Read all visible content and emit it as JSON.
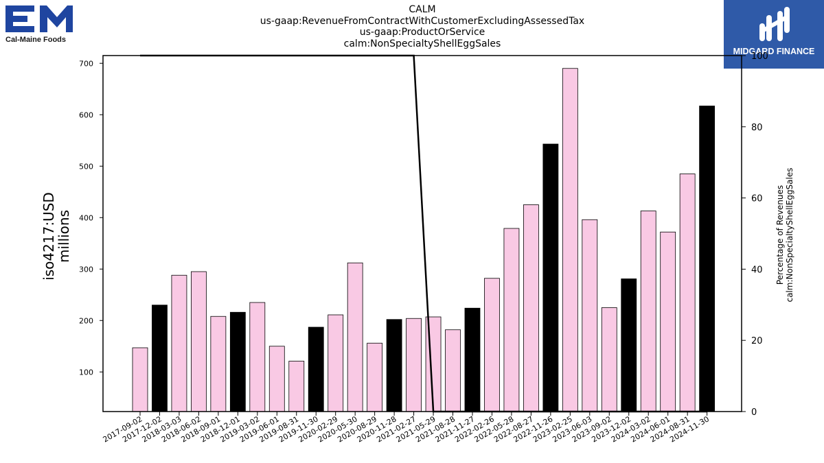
{
  "logos": {
    "left_text": "Cal-Maine Foods",
    "right_text": "MIDGARD FINANCE",
    "brand_blue": "#1f45a0",
    "finance_bg": "#2f5aa8"
  },
  "chart_data": {
    "type": "bar",
    "title_lines": [
      "CALM",
      "us-gaap:RevenueFromContractWithCustomerExcludingAssessedTax",
      "us-gaap:ProductOrService",
      "calm:NonSpecialtyShellEggSales"
    ],
    "ylabel": "iso4217:USD\nmillions",
    "y2label": "Percentage of Revenues\ncalm:NonSpecialtyShellEggSales",
    "ylim": [
      23,
      715
    ],
    "y2lim": [
      0,
      100
    ],
    "yticks": [
      100,
      200,
      300,
      400,
      500,
      600,
      700
    ],
    "y2ticks": [
      0,
      20,
      40,
      60,
      80,
      100
    ],
    "colors": {
      "quarter": "#f9c9e4",
      "annual": "#000000",
      "line": "#000000"
    },
    "categories": [
      "2017-09-02",
      "2017-12-02",
      "2018-03-03",
      "2018-06-02",
      "2018-09-01",
      "2018-12-01",
      "2019-03-02",
      "2019-06-01",
      "2019-08-31",
      "2019-11-30",
      "2020-02-29",
      "2020-05-30",
      "2020-08-29",
      "2020-11-28",
      "2021-02-27",
      "2021-05-29",
      "2021-08-28",
      "2021-11-27",
      "2022-02-26",
      "2022-05-28",
      "2022-08-27",
      "2022-11-26",
      "2023-02-25",
      "2023-06-03",
      "2023-09-02",
      "2023-12-02",
      "2024-03-02",
      "2024-06-01",
      "2024-08-31",
      "2024-11-30"
    ],
    "values": [
      147,
      230,
      288,
      295,
      208,
      216,
      235,
      150,
      121,
      187,
      211,
      312,
      156,
      202,
      204,
      207,
      182,
      224,
      282,
      379,
      425,
      543,
      690,
      396,
      225,
      281,
      413,
      372,
      485,
      617
    ],
    "bar_kind": [
      "q",
      "a",
      "q",
      "q",
      "q",
      "a",
      "q",
      "q",
      "q",
      "a",
      "q",
      "q",
      "q",
      "a",
      "q",
      "q",
      "q",
      "a",
      "q",
      "q",
      "q",
      "a",
      "q",
      "q",
      "q",
      "a",
      "q",
      "q",
      "q",
      "a"
    ],
    "percentage": [
      100,
      100,
      100,
      100,
      100,
      100,
      100,
      100,
      100,
      100,
      100,
      100,
      100,
      100,
      100,
      0,
      0,
      0,
      0,
      0,
      0,
      0,
      0,
      0,
      0,
      0,
      0,
      0,
      0,
      0
    ]
  }
}
